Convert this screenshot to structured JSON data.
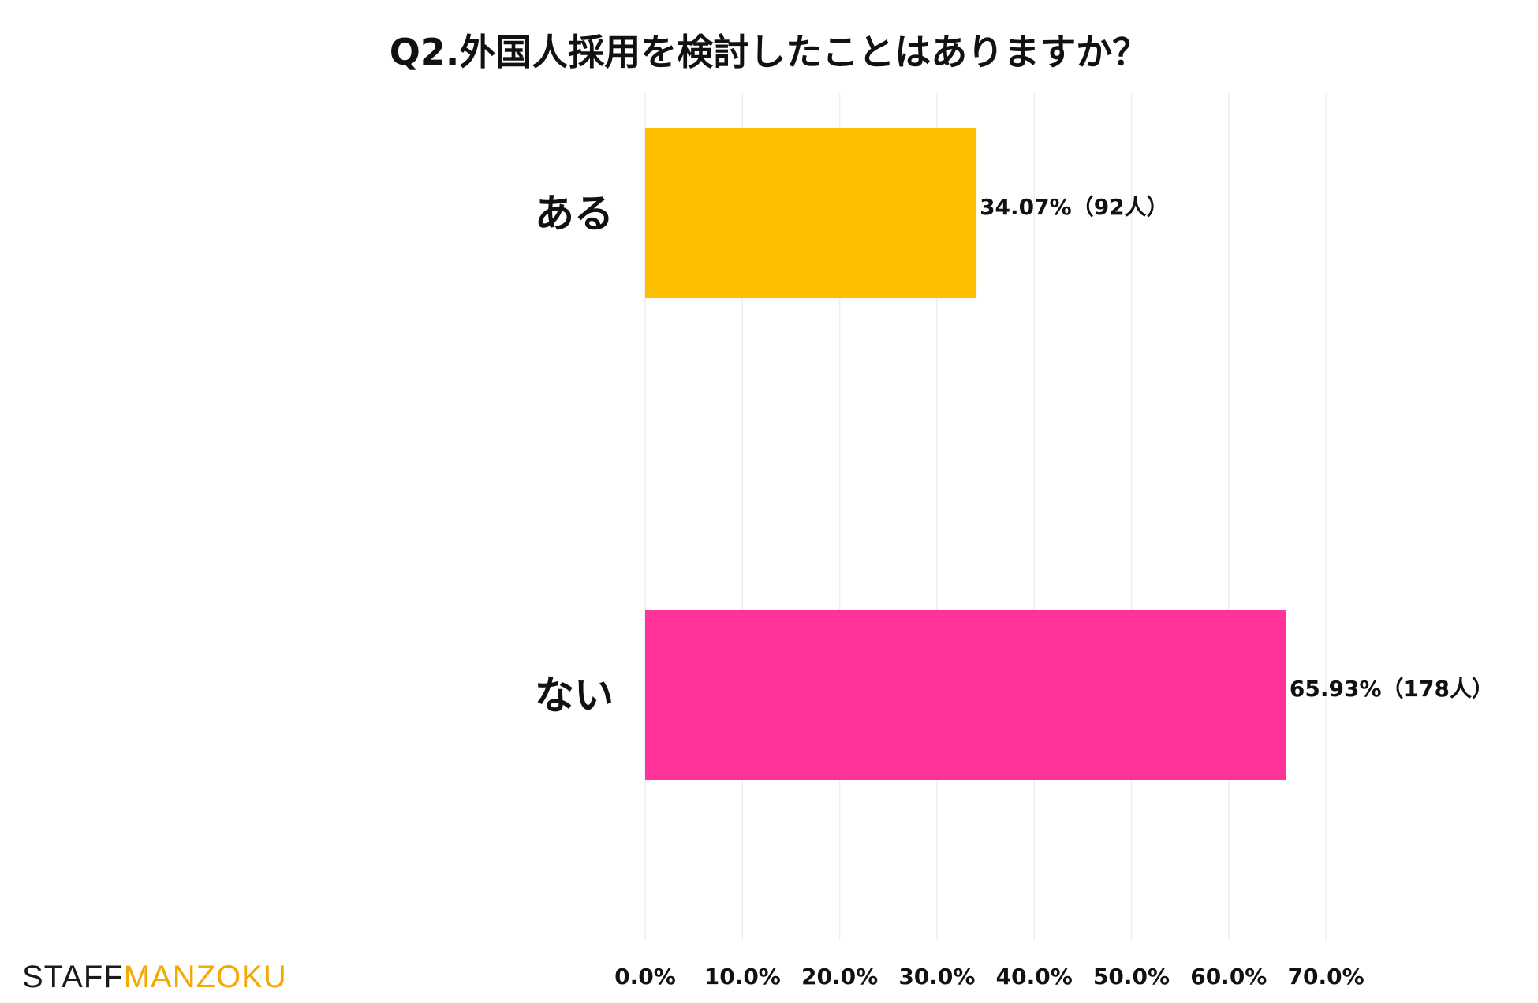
{
  "chart_data": {
    "type": "bar",
    "orientation": "horizontal",
    "title": "Q2.外国人採用を検討したことはありますか？",
    "categories": [
      "ある",
      "ない"
    ],
    "values": [
      34.07,
      65.93
    ],
    "data_labels": [
      "34.07%（92人）",
      "65.93%（178人）"
    ],
    "colors": [
      "#FDC000",
      "#FF3399"
    ],
    "x_ticks": [
      "0.0%",
      "10.0%",
      "20.0%",
      "30.0%",
      "40.0%",
      "50.0%",
      "60.0%",
      "70.0%"
    ],
    "xlim": [
      0,
      70
    ],
    "xlabel": "",
    "ylabel": "",
    "grid": true,
    "legend": false
  },
  "brand": {
    "part1": "STAFF",
    "part2": "MANZOKU",
    "color1": "#1a1a1a",
    "color2": "#F5A800"
  }
}
